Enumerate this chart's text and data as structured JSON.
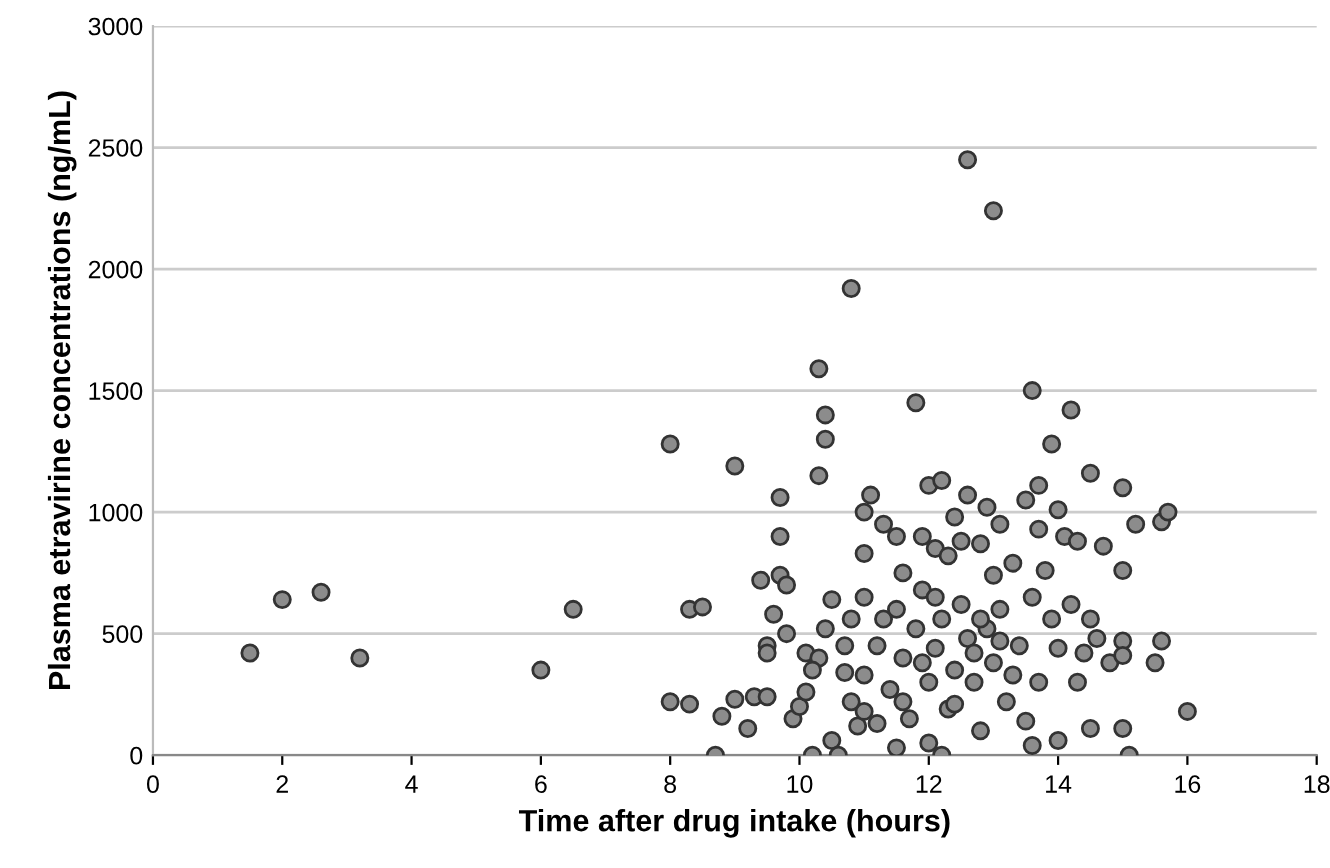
{
  "chart_data": {
    "type": "scatter",
    "xlabel": "Time after drug intake (hours)",
    "ylabel": "Plasma etravirine concentrations (ng/mL)",
    "x": [
      1.5,
      2,
      2.6,
      3.2,
      6,
      6.5,
      8,
      8,
      8.3,
      8.3,
      8.5,
      8.7,
      8.8,
      9,
      9,
      9.2,
      9.3,
      9.4,
      9.5,
      9.5,
      9.5,
      9.6,
      9.7,
      9.7,
      9.7,
      9.8,
      9.8,
      9.9,
      10,
      10.1,
      10.1,
      10.2,
      10.3,
      10.3,
      10.3,
      10.4,
      10.4,
      10.4,
      10.5,
      10.5,
      10.6,
      10.7,
      10.7,
      10.8,
      10.8,
      10.9,
      11,
      11,
      11,
      11,
      11,
      11.1,
      11.2,
      11.3,
      11.3,
      11.4,
      11.5,
      11.5,
      11.6,
      11.6,
      11.7,
      11.8,
      11.8,
      11.9,
      11.9,
      12,
      12,
      12,
      12.1,
      12.1,
      12.2,
      12.2,
      12.3,
      12.3,
      12.4,
      12.4,
      12.5,
      12.5,
      12.6,
      12.6,
      12.6,
      12.7,
      12.8,
      12.8,
      12.9,
      12.9,
      13,
      13,
      13,
      13.1,
      13.1,
      13.2,
      13.3,
      13.4,
      13.5,
      13.5,
      13.6,
      13.6,
      13.7,
      13.7,
      13.7,
      13.8,
      13.9,
      13.9,
      14,
      14,
      14,
      14.1,
      14.2,
      14.2,
      14.3,
      14.4,
      14.5,
      14.5,
      14.5,
      14.6,
      14.7,
      14.8,
      15,
      15,
      15,
      15,
      15,
      15.1,
      15.2,
      15.5,
      15.6,
      15.6,
      15.7,
      16,
      10.2,
      11.2,
      11.6,
      12.1,
      12.4,
      12.7,
      13.3,
      13.6,
      11.9,
      12.8,
      10.8,
      13.1,
      12.2,
      11.5,
      14.3
    ],
    "values": [
      420,
      640,
      670,
      400,
      350,
      600,
      1280,
      220,
      210,
      600,
      610,
      0,
      160,
      1190,
      230,
      110,
      240,
      720,
      240,
      450,
      420,
      580,
      1060,
      900,
      740,
      500,
      700,
      150,
      200,
      260,
      420,
      0,
      1150,
      1590,
      400,
      1400,
      1300,
      520,
      640,
      60,
      0,
      450,
      340,
      1920,
      560,
      120,
      830,
      1000,
      650,
      330,
      180,
      1070,
      450,
      950,
      560,
      270,
      900,
      600,
      750,
      400,
      150,
      1450,
      520,
      900,
      680,
      1110,
      300,
      50,
      850,
      440,
      1130,
      560,
      820,
      190,
      980,
      350,
      880,
      620,
      2450,
      1070,
      480,
      300,
      870,
      100,
      1020,
      520,
      2240,
      740,
      380,
      950,
      600,
      220,
      790,
      450,
      1050,
      140,
      1500,
      650,
      1110,
      930,
      300,
      760,
      1280,
      560,
      1010,
      440,
      60,
      900,
      1420,
      620,
      880,
      420,
      1160,
      560,
      110,
      480,
      860,
      380,
      1100,
      760,
      470,
      410,
      110,
      0,
      950,
      380,
      470,
      960,
      1000,
      180,
      350,
      130,
      220,
      650,
      210,
      420,
      330,
      40,
      380,
      560,
      220,
      470,
      0,
      30,
      300
    ],
    "color": "#8c8c8c",
    "marker": "circle",
    "xlim": [
      0,
      18
    ],
    "ylim": [
      0,
      3000
    ],
    "xticks": [
      0,
      2,
      4,
      6,
      8,
      10,
      12,
      14,
      16,
      18
    ],
    "yticks": [
      0,
      500,
      1000,
      1500,
      2000,
      2500,
      3000
    ],
    "grid": "y"
  }
}
